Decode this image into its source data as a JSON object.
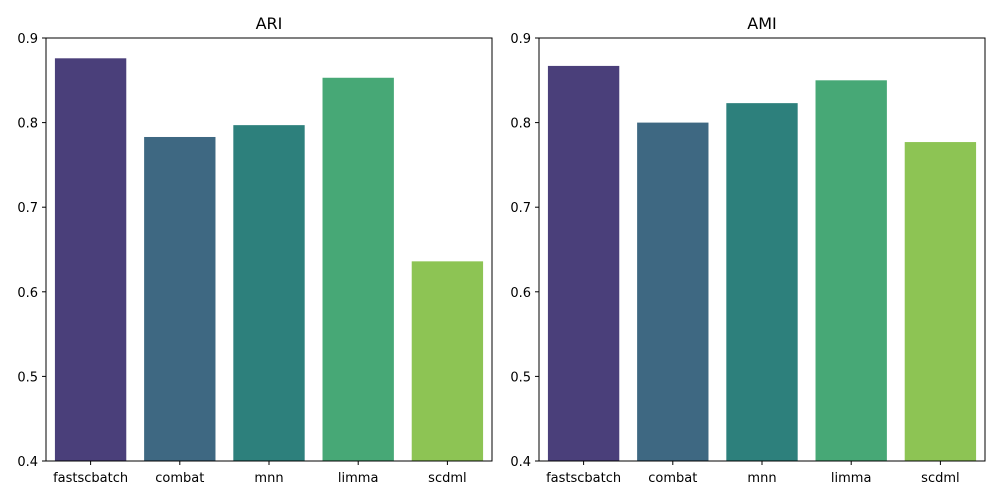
{
  "chart_data": [
    {
      "type": "bar",
      "title": "ARI",
      "xlabel": "",
      "ylabel": "",
      "categories": [
        "fastscbatch",
        "combat",
        "mnn",
        "limma",
        "scdml"
      ],
      "values": [
        0.876,
        0.783,
        0.797,
        0.853,
        0.636
      ],
      "colors": [
        "#4a3f7a",
        "#3e6882",
        "#2d807c",
        "#47a876",
        "#8dc454"
      ],
      "ylim": [
        0.4,
        0.9
      ],
      "yticks": [
        "0.4",
        "0.5",
        "0.6",
        "0.7",
        "0.8",
        "0.9"
      ],
      "grid": false
    },
    {
      "type": "bar",
      "title": "AMI",
      "xlabel": "",
      "ylabel": "",
      "categories": [
        "fastscbatch",
        "combat",
        "mnn",
        "limma",
        "scdml"
      ],
      "values": [
        0.867,
        0.8,
        0.823,
        0.85,
        0.777
      ],
      "colors": [
        "#4a3f7a",
        "#3e6882",
        "#2d807c",
        "#47a876",
        "#8dc454"
      ],
      "ylim": [
        0.4,
        0.9
      ],
      "yticks": [
        "0.4",
        "0.5",
        "0.6",
        "0.7",
        "0.8",
        "0.9"
      ],
      "grid": false
    }
  ]
}
